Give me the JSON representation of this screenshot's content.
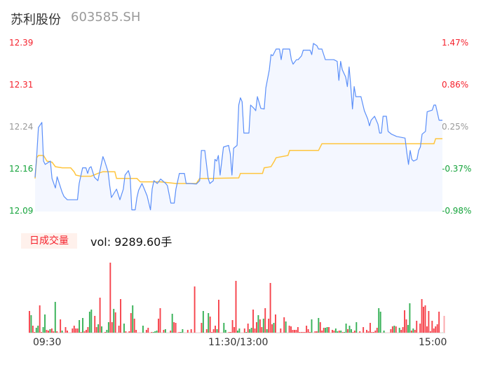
{
  "header": {
    "name": "苏利股份",
    "code": "603585.SH"
  },
  "volume_panel": {
    "tag": "日成交量",
    "value_label": "vol: 9289.60手"
  },
  "colors": {
    "price_line": "#5b8ff9",
    "avg_line": "#ffc53d",
    "up": "#f5222d",
    "down": "#14a33a",
    "neutral": "#999999",
    "area_fill": "#f4f7ff"
  },
  "chart_data": [
    {
      "type": "line",
      "ylim": [
        12.09,
        12.39
      ],
      "y_ticks_left": [
        {
          "label": "12.39",
          "color": "up"
        },
        {
          "label": "12.31",
          "color": "up"
        },
        {
          "label": "12.24",
          "color": "neutral"
        },
        {
          "label": "12.16",
          "color": "down"
        },
        {
          "label": "12.09",
          "color": "down"
        }
      ],
      "y_ticks_right": [
        {
          "label": "1.47%",
          "color": "up"
        },
        {
          "label": "0.86%",
          "color": "up"
        },
        {
          "label": "0.25%",
          "color": "neutral"
        },
        {
          "label": "-0.37%",
          "color": "down"
        },
        {
          "label": "-0.98%",
          "color": "down"
        }
      ],
      "x_ticks": [
        "09:30",
        "11:30/13:00",
        "15:00"
      ],
      "series": [
        {
          "key": "price",
          "points": [
            [
              "09:30",
              12.151
            ],
            [
              "09:31",
              12.19
            ],
            [
              "09:32",
              12.24
            ],
            [
              "09:34",
              12.249
            ],
            [
              "09:35",
              12.18
            ],
            [
              "09:36",
              12.174
            ],
            [
              "09:39",
              12.18
            ],
            [
              "09:40",
              12.149
            ],
            [
              "09:42",
              12.132
            ],
            [
              "09:43",
              12.152
            ],
            [
              "09:46",
              12.124
            ],
            [
              "09:47",
              12.117
            ],
            [
              "09:49",
              12.111
            ],
            [
              "09:55",
              12.111
            ],
            [
              "09:56",
              12.14
            ],
            [
              "09:58",
              12.168
            ],
            [
              "10:00",
              12.168
            ],
            [
              "10:01",
              12.158
            ],
            [
              "10:02",
              12.168
            ],
            [
              "10:03",
              12.17
            ],
            [
              "10:05",
              12.151
            ],
            [
              "10:07",
              12.145
            ],
            [
              "10:09",
              12.174
            ],
            [
              "10:10",
              12.188
            ],
            [
              "10:11",
              12.18
            ],
            [
              "10:13",
              12.161
            ],
            [
              "10:14",
              12.136
            ],
            [
              "10:15",
              12.115
            ],
            [
              "10:18",
              12.13
            ],
            [
              "10:20",
              12.111
            ],
            [
              "10:22",
              12.13
            ],
            [
              "10:23",
              12.155
            ],
            [
              "10:25",
              12.163
            ],
            [
              "10:26",
              12.152
            ],
            [
              "10:27",
              12.093
            ],
            [
              "10:29",
              12.093
            ],
            [
              "10:30",
              12.115
            ],
            [
              "10:31",
              12.128
            ],
            [
              "10:33",
              12.14
            ],
            [
              "10:34",
              12.133
            ],
            [
              "10:36",
              12.118
            ],
            [
              "10:38",
              12.093
            ],
            [
              "10:39",
              12.13
            ],
            [
              "10:40",
              12.145
            ],
            [
              "10:42",
              12.14
            ],
            [
              "10:44",
              12.148
            ],
            [
              "10:47",
              12.14
            ],
            [
              "10:48",
              12.136
            ],
            [
              "10:50",
              12.105
            ],
            [
              "10:52",
              12.105
            ],
            [
              "10:53",
              12.13
            ],
            [
              "10:55",
              12.158
            ],
            [
              "10:58",
              12.158
            ],
            [
              "10:59",
              12.14
            ],
            [
              "11:01",
              12.14
            ],
            [
              "11:05",
              12.139
            ],
            [
              "11:07",
              12.145
            ],
            [
              "11:08",
              12.199
            ],
            [
              "11:10",
              12.199
            ],
            [
              "11:12",
              12.149
            ],
            [
              "11:13",
              12.14
            ],
            [
              "11:15",
              12.145
            ],
            [
              "11:16",
              12.183
            ],
            [
              "11:17",
              12.18
            ],
            [
              "11:18",
              12.19
            ],
            [
              "11:19",
              12.155
            ],
            [
              "11:21",
              12.205
            ],
            [
              "11:24",
              12.208
            ],
            [
              "11:25",
              12.193
            ],
            [
              "11:26",
              12.155
            ],
            [
              "11:27",
              12.203
            ],
            [
              "11:29",
              12.208
            ],
            [
              "11:30",
              12.28
            ],
            [
              "13:01",
              12.293
            ],
            [
              "13:02",
              12.286
            ],
            [
              "13:03",
              12.23
            ],
            [
              "13:06",
              12.23
            ],
            [
              "13:07",
              12.28
            ],
            [
              "13:09",
              12.274
            ],
            [
              "13:10",
              12.27
            ],
            [
              "13:11",
              12.295
            ],
            [
              "13:13",
              12.274
            ],
            [
              "13:15",
              12.273
            ],
            [
              "13:16",
              12.311
            ],
            [
              "13:18",
              12.343
            ],
            [
              "13:19",
              12.37
            ],
            [
              "13:20",
              12.368
            ],
            [
              "13:22",
              12.38
            ],
            [
              "13:24",
              12.38
            ],
            [
              "13:25",
              12.361
            ],
            [
              "13:26",
              12.38
            ],
            [
              "13:30",
              12.38
            ],
            [
              "13:31",
              12.361
            ],
            [
              "13:32",
              12.353
            ],
            [
              "13:34",
              12.361
            ],
            [
              "13:35",
              12.361
            ],
            [
              "13:37",
              12.368
            ],
            [
              "13:38",
              12.378
            ],
            [
              "13:42",
              12.378
            ],
            [
              "13:43",
              12.37
            ],
            [
              "13:44",
              12.39
            ],
            [
              "13:46",
              12.386
            ],
            [
              "13:47",
              12.38
            ],
            [
              "13:49",
              12.38
            ],
            [
              "13:51",
              12.361
            ],
            [
              "13:56",
              12.361
            ],
            [
              "13:58",
              12.358
            ],
            [
              "13:59",
              12.324
            ],
            [
              "14:00",
              12.358
            ],
            [
              "14:01",
              12.343
            ],
            [
              "14:03",
              12.33
            ],
            [
              "14:04",
              12.313
            ],
            [
              "14:05",
              12.348
            ],
            [
              "14:06",
              12.313
            ],
            [
              "14:07",
              12.273
            ],
            [
              "14:08",
              12.313
            ],
            [
              "14:09",
              12.295
            ],
            [
              "14:12",
              12.295
            ],
            [
              "14:14",
              12.27
            ],
            [
              "14:16",
              12.255
            ],
            [
              "14:17",
              12.243
            ],
            [
              "14:18",
              12.253
            ],
            [
              "14:20",
              12.26
            ],
            [
              "14:22",
              12.246
            ],
            [
              "14:23",
              12.23
            ],
            [
              "14:24",
              12.23
            ],
            [
              "14:25",
              12.26
            ],
            [
              "14:27",
              12.26
            ],
            [
              "14:28",
              12.233
            ],
            [
              "14:30",
              12.228
            ],
            [
              "14:33",
              12.224
            ],
            [
              "14:38",
              12.221
            ],
            [
              "14:39",
              12.195
            ],
            [
              "14:40",
              12.174
            ],
            [
              "14:41",
              12.199
            ],
            [
              "14:42",
              12.183
            ],
            [
              "14:43",
              12.18
            ],
            [
              "14:45",
              12.183
            ],
            [
              "14:46",
              12.199
            ],
            [
              "14:47",
              12.205
            ],
            [
              "14:48",
              12.228
            ],
            [
              "14:50",
              12.233
            ],
            [
              "14:51",
              12.268
            ],
            [
              "14:54",
              12.271
            ],
            [
              "14:55",
              12.28
            ],
            [
              "14:56",
              12.28
            ],
            [
              "14:58",
              12.253
            ],
            [
              "15:00",
              12.253
            ]
          ]
        },
        {
          "key": "average",
          "points": [
            [
              "09:30",
              12.149
            ],
            [
              "09:31",
              12.186
            ],
            [
              "09:32",
              12.19
            ],
            [
              "09:35",
              12.19
            ],
            [
              "09:37",
              12.18
            ],
            [
              "09:40",
              12.178
            ],
            [
              "09:42",
              12.17
            ],
            [
              "09:46",
              12.168
            ],
            [
              "09:51",
              12.168
            ],
            [
              "09:53",
              12.161
            ],
            [
              "09:54",
              12.155
            ],
            [
              "09:57",
              12.153
            ],
            [
              "10:03",
              12.153
            ],
            [
              "10:07",
              12.158
            ],
            [
              "10:10",
              12.161
            ],
            [
              "10:17",
              12.161
            ],
            [
              "10:18",
              12.149
            ],
            [
              "10:22",
              12.149
            ],
            [
              "10:30",
              12.149
            ],
            [
              "10:32",
              12.143
            ],
            [
              "10:44",
              12.143
            ],
            [
              "10:53",
              12.14
            ],
            [
              "11:05",
              12.14
            ],
            [
              "11:07",
              12.149
            ],
            [
              "11:13",
              12.149
            ],
            [
              "11:30",
              12.15
            ],
            [
              "13:01",
              12.158
            ],
            [
              "13:14",
              12.158
            ],
            [
              "13:15",
              12.168
            ],
            [
              "13:19",
              12.17
            ],
            [
              "13:21",
              12.18
            ],
            [
              "13:22",
              12.186
            ],
            [
              "13:29",
              12.19
            ],
            [
              "13:30",
              12.199
            ],
            [
              "13:47",
              12.199
            ],
            [
              "13:49",
              12.211
            ],
            [
              "14:55",
              12.211
            ],
            [
              "14:56",
              12.22
            ],
            [
              "15:00",
              12.22
            ]
          ]
        }
      ]
    },
    {
      "type": "bar",
      "values": [
        31,
        25,
        10,
        1,
        7,
        10,
        39,
        1,
        8,
        26,
        4,
        3,
        5,
        6,
        2,
        44,
        2,
        0,
        19,
        3,
        0,
        8,
        3,
        0,
        0,
        6,
        10,
        6,
        6,
        18,
        1,
        21,
        2,
        4,
        8,
        30,
        33,
        0,
        24,
        8,
        12,
        50,
        9,
        0,
        1,
        4,
        15,
        100,
        15,
        34,
        29,
        0,
        10,
        48,
        0,
        13,
        2,
        0,
        2,
        28,
        39,
        20,
        4,
        0,
        0,
        0,
        10,
        0,
        4,
        7,
        0,
        1,
        1,
        2,
        3,
        20,
        35,
        0,
        4,
        5,
        0,
        0,
        3,
        27,
        15,
        14,
        0,
        1,
        1,
        5,
        0,
        0,
        4,
        0,
        5,
        0,
        66,
        0,
        0,
        0,
        14,
        31,
        0,
        5,
        28,
        23,
        1,
        5,
        10,
        5,
        47,
        0,
        0,
        14,
        4,
        0,
        1,
        1,
        18,
        8,
        74,
        3,
        6,
        0,
        0,
        6,
        1,
        13,
        5,
        7,
        33,
        6,
        15,
        25,
        19,
        8,
        20,
        35,
        5,
        20,
        71,
        12,
        14,
        26,
        0,
        0,
        6,
        0,
        22,
        16,
        0,
        10,
        9,
        4,
        4,
        4,
        8,
        1,
        1,
        1,
        1,
        10,
        5,
        1,
        19,
        0,
        2,
        2,
        21,
        15,
        3,
        7,
        7,
        8,
        8,
        0,
        4,
        3,
        6,
        2,
        3,
        3,
        1,
        1,
        13,
        5,
        10,
        5,
        1,
        3,
        15,
        0,
        2,
        0,
        8,
        0,
        4,
        2,
        14,
        1,
        1,
        3,
        7,
        35,
        30,
        0,
        3,
        0,
        0,
        0,
        5,
        9,
        10,
        9,
        0,
        7,
        4,
        8,
        32,
        19,
        11,
        42,
        3,
        6,
        4,
        17,
        0,
        13,
        48,
        37,
        39,
        9,
        31,
        2,
        17,
        6,
        9,
        12,
        30,
        0,
        0,
        24
      ],
      "direction": "rgrrggrrggrrgrrgrrrgrrrrrrrrrgrgrrrggrrrgrgrrggrrgrrrrrgrrrrgrrrrrggrrrrgggrrgrgg rrgrrrrggrrrgrrrrrrrgrrgrrrrgrrrggrrrrrrggrrrgrggrrrgrrgrgrrrgrrrrrrgrrrrrrrrrrrr rrgrrrgrrrggrrrrggrgrggrggrrgrrrrrrrrrrrrggrgrrrrrgrrgrrrrggrgrrrrrrrrrrrrrrrrgrrr"
    }
  ]
}
